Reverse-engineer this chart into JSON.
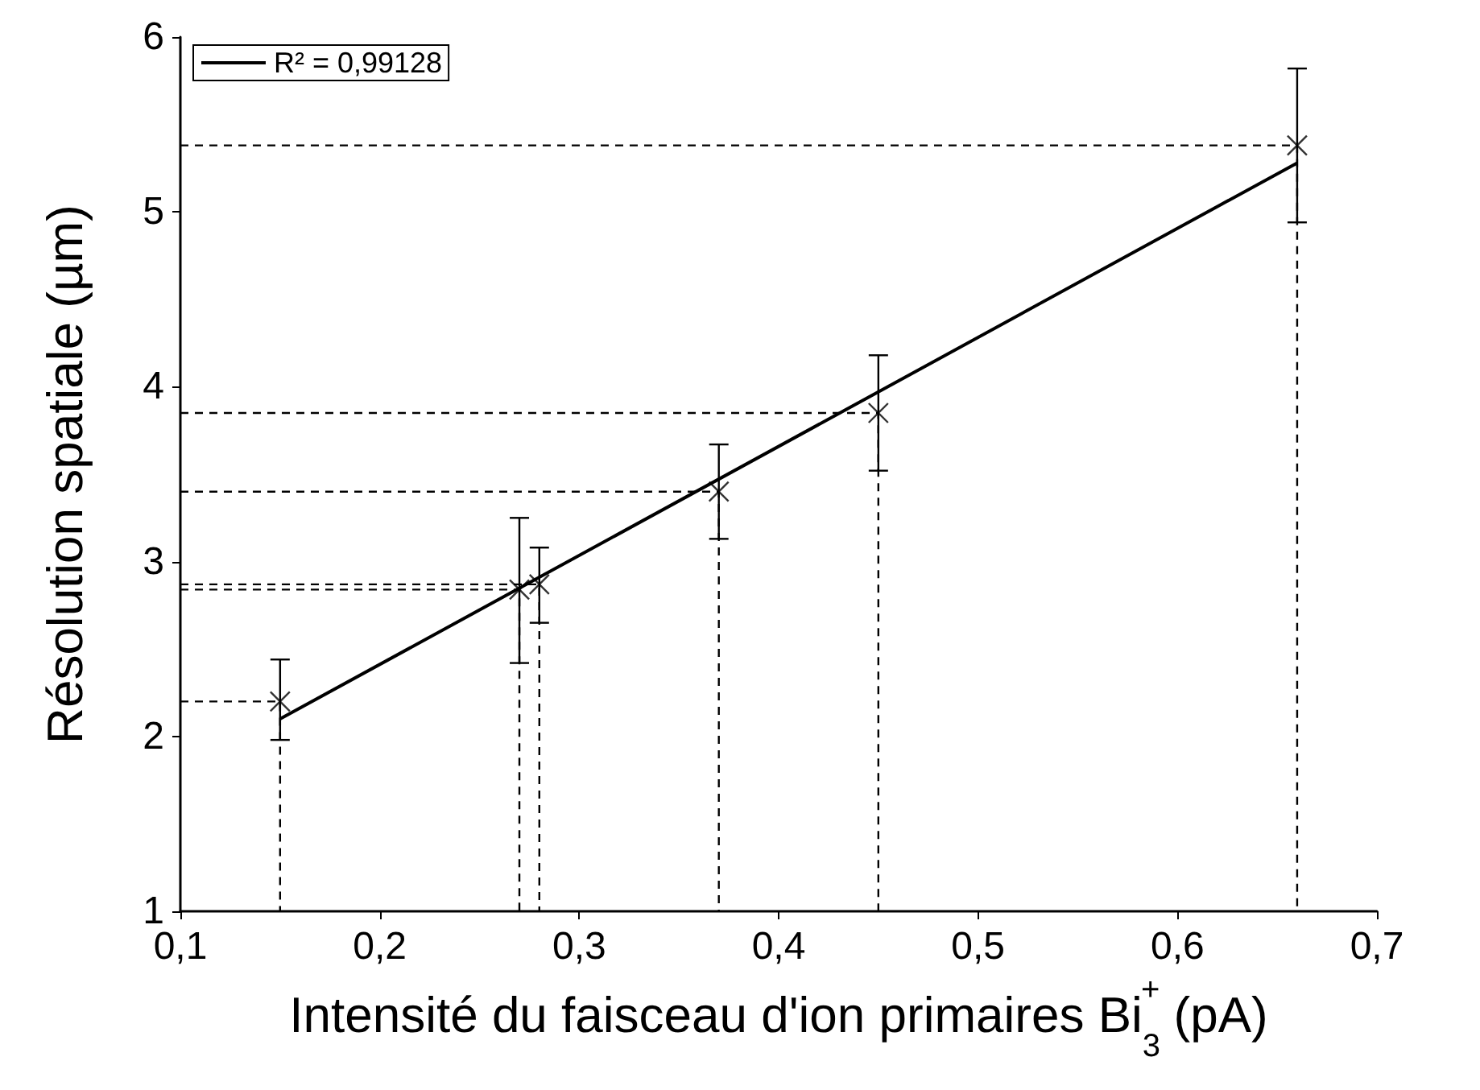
{
  "chart_data": {
    "type": "scatter",
    "xlabel": "Intensité du faisceau d'ion primaires Bi$_{3}$$^{+}$ (pA)",
    "ylabel": "Résolution spatiale (µm)",
    "xlim": [
      0.1,
      0.7
    ],
    "xticks": [
      {
        "value": 0.1,
        "label": "0,1"
      },
      {
        "value": 0.2,
        "label": "0,2"
      },
      {
        "value": 0.3,
        "label": "0,3"
      },
      {
        "value": 0.4,
        "label": "0,4"
      },
      {
        "value": 0.5,
        "label": "0,5"
      },
      {
        "value": 0.6,
        "label": "0,6"
      },
      {
        "value": 0.7,
        "label": "0,7"
      }
    ],
    "ylim": [
      1,
      6
    ],
    "yticks": [
      1,
      2,
      3,
      4,
      5,
      6
    ],
    "grid": false,
    "legend": "top left",
    "series": [
      {
        "color": "#000000",
        "marker": "cross",
        "x": [
          0.15,
          0.27,
          0.28,
          0.37,
          0.45,
          0.66
        ],
        "values": [
          2.2,
          2.84,
          2.87,
          3.4,
          3.85,
          5.38
        ],
        "errors": [
          [
            1.98,
            2.44
          ],
          [
            2.42,
            3.25
          ],
          [
            2.65,
            3.08
          ],
          [
            3.13,
            3.67
          ],
          [
            3.52,
            4.18
          ],
          [
            4.94,
            5.82
          ]
        ]
      },
      {
        "type": "line",
        "name": "R² = 0,99128",
        "color": "#000000",
        "marker": "none",
        "line_style": "solid",
        "x": [
          0.15,
          0.66
        ],
        "values": [
          2.1,
          5.28
        ]
      },
      {
        "type": "line",
        "color": "#000000",
        "marker": "none",
        "line_style": "dashed",
        "x": [
          0.1,
          0.15,
          0.15
        ],
        "values": [
          2.2,
          2.2,
          1
        ]
      },
      {
        "type": "line",
        "color": "#000000",
        "marker": "none",
        "line_style": "dashed",
        "x": [
          0.1,
          0.27,
          0.27
        ],
        "values": [
          2.84,
          2.84,
          1
        ]
      },
      {
        "type": "line",
        "color": "#000000",
        "marker": "none",
        "line_style": "dashed",
        "x": [
          0.1,
          0.28,
          0.28
        ],
        "values": [
          2.87,
          2.87,
          1
        ]
      },
      {
        "type": "line",
        "color": "#000000",
        "marker": "none",
        "line_style": "dashed",
        "x": [
          0.1,
          0.37,
          0.37
        ],
        "values": [
          3.4,
          3.4,
          1
        ]
      },
      {
        "type": "line",
        "color": "#000000",
        "marker": "none",
        "line_style": "dashed",
        "x": [
          0.1,
          0.45,
          0.45
        ],
        "values": [
          3.85,
          3.85,
          1
        ]
      },
      {
        "type": "line",
        "color": "#000000",
        "marker": "none",
        "line_style": "dashed",
        "x": [
          0.1,
          0.66,
          0.66
        ],
        "values": [
          5.38,
          5.38,
          1
        ]
      }
    ]
  }
}
